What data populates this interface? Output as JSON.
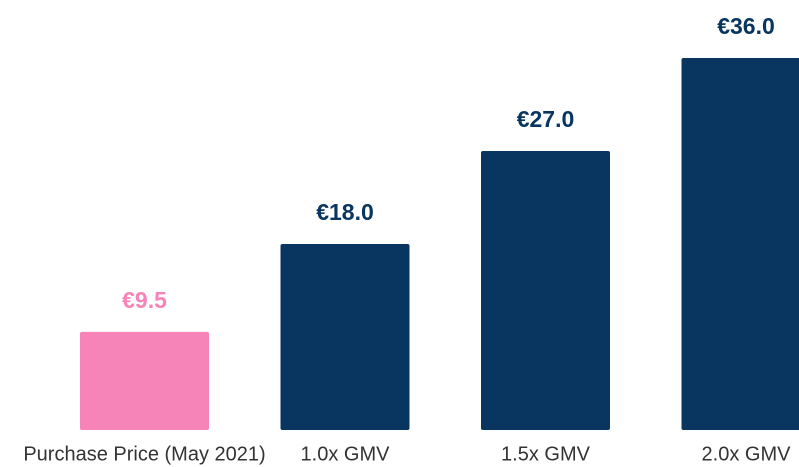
{
  "chart_data": {
    "type": "bar",
    "categories": [
      "Purchase Price (May 2021)",
      "1.0x GMV",
      "1.5x GMV",
      "2.0x GMV"
    ],
    "values": [
      9.5,
      18.0,
      27.0,
      36.0
    ],
    "value_labels": [
      "€9.5",
      "€18.0",
      "€27.0",
      "€36.0"
    ],
    "colors": [
      "#f784b8",
      "#083660",
      "#083660",
      "#083660"
    ]
  }
}
